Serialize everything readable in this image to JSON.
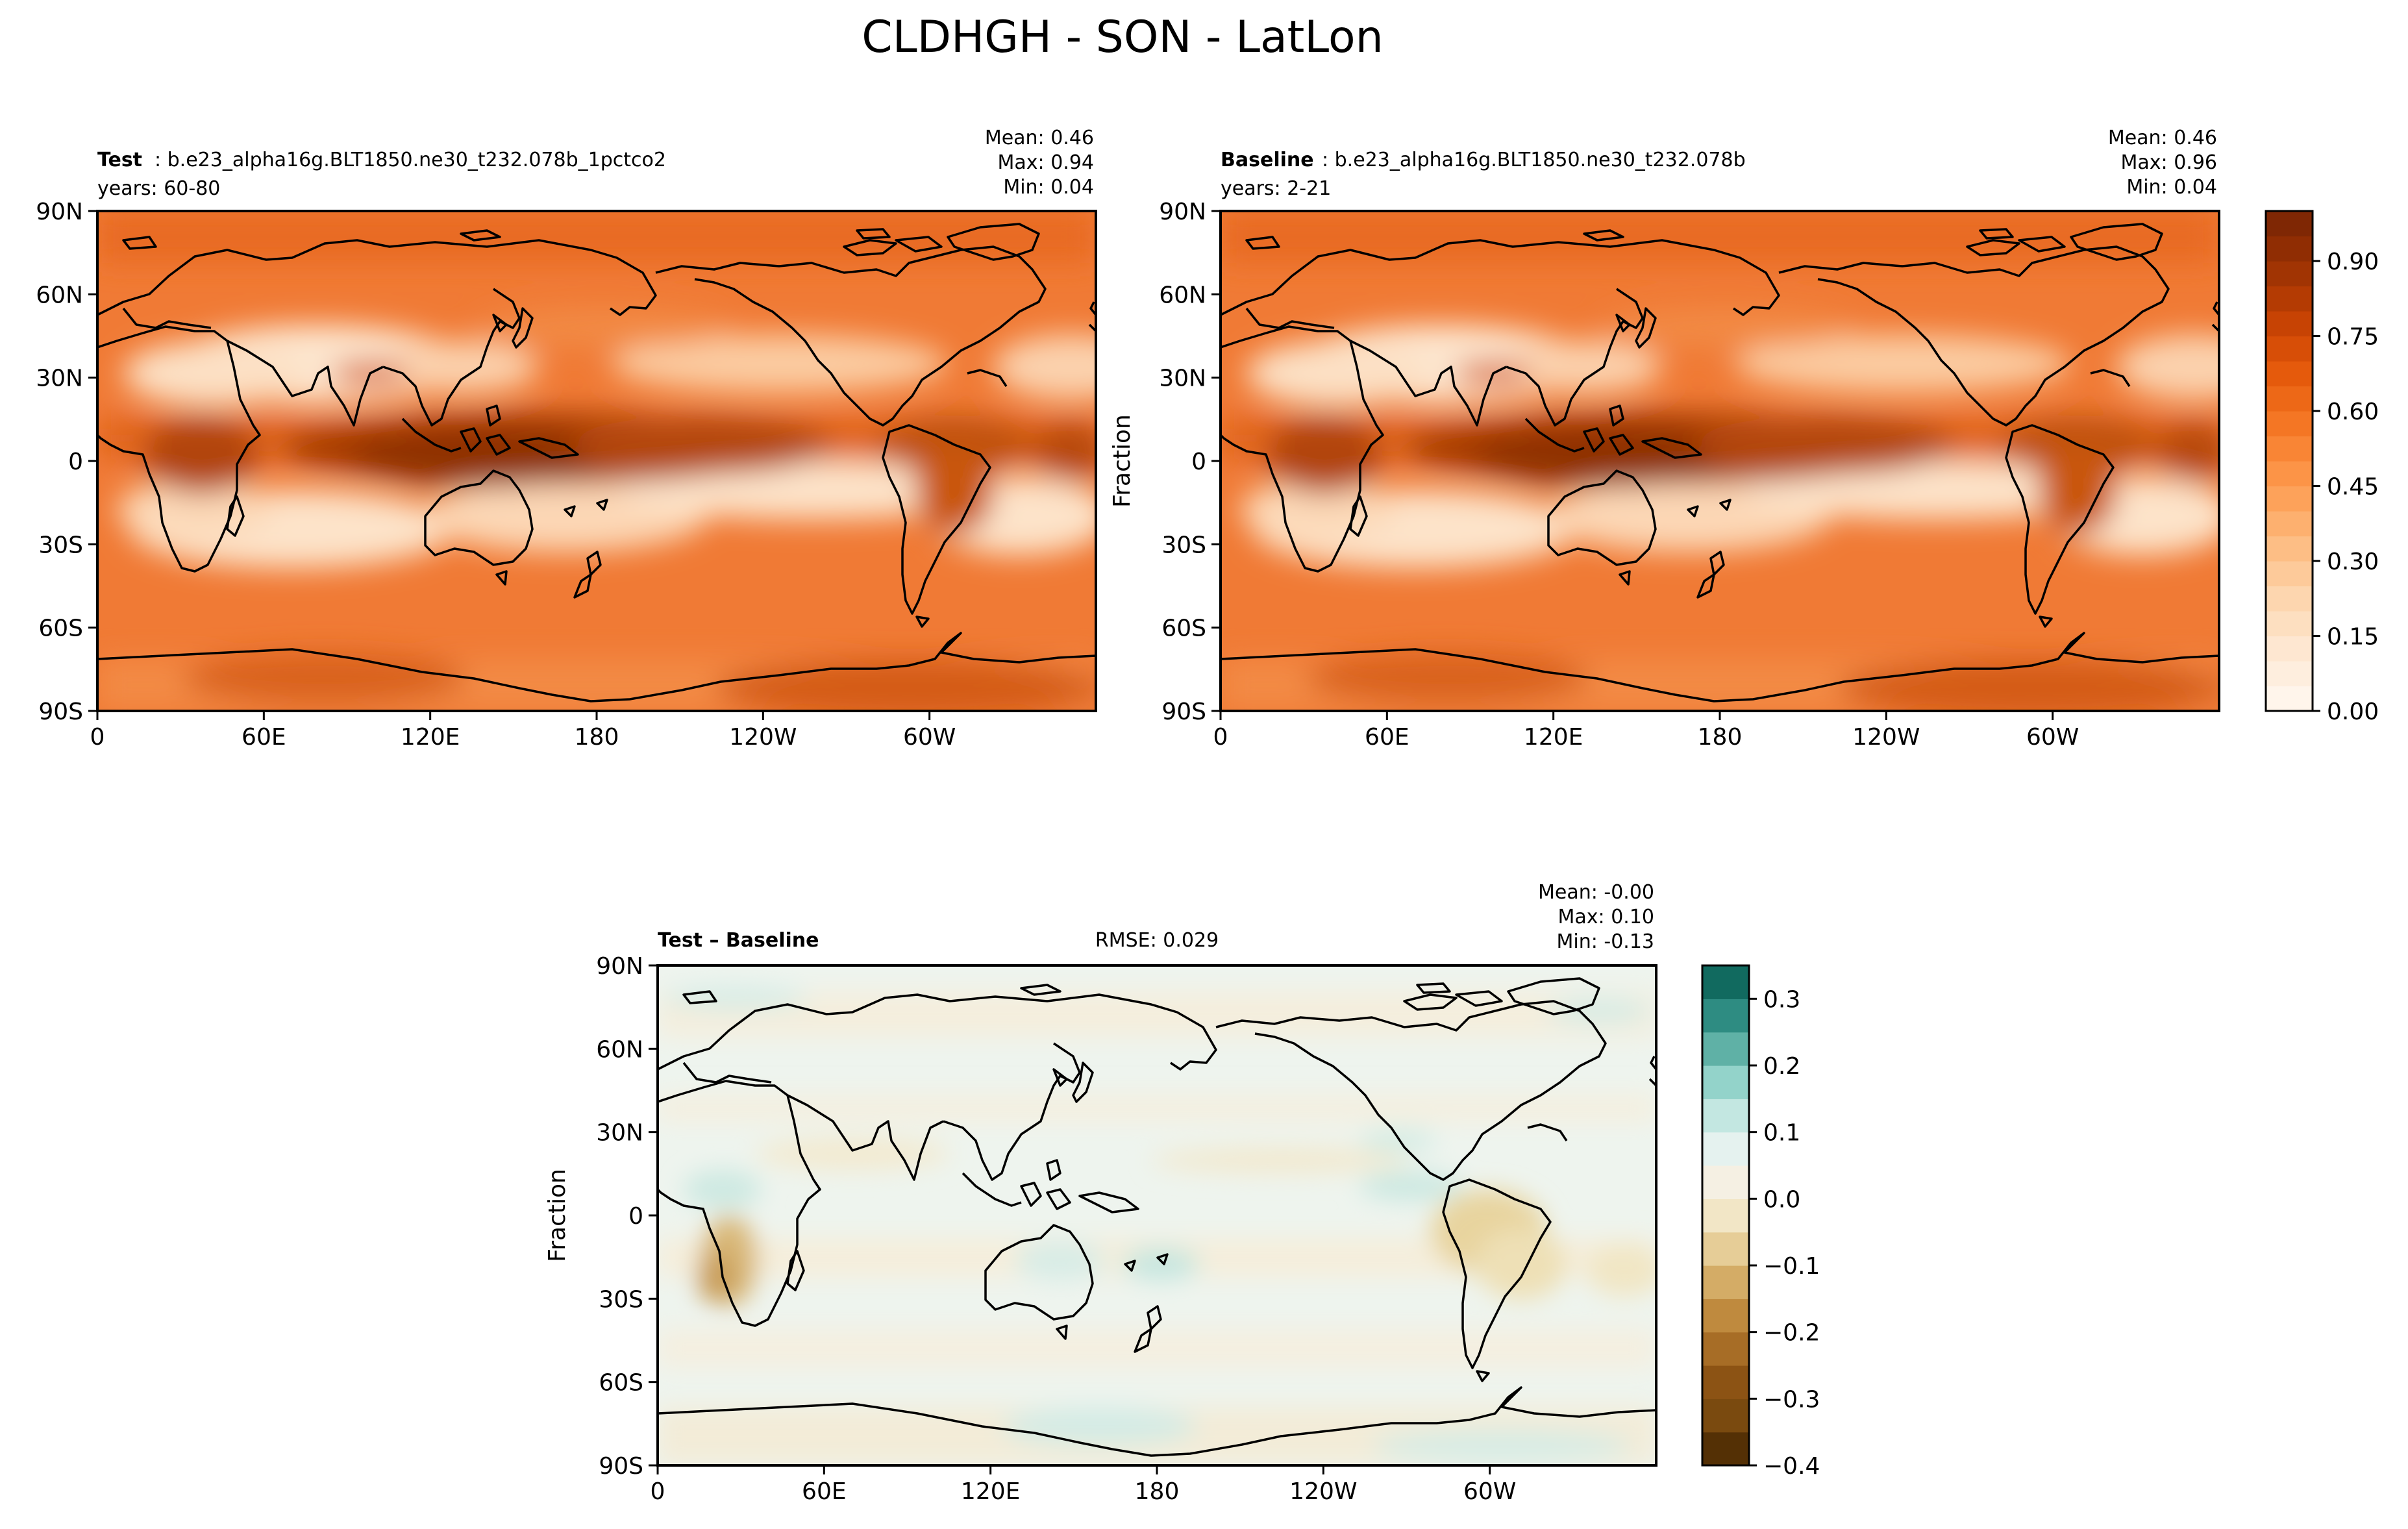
{
  "title": "CLDHGH - SON - LatLon",
  "chart_data": [
    {
      "type": "heatmap",
      "panel": "Test",
      "label_bold": "Test",
      "label_rest": ": b.e23_alpha16g.BLT1850.ne30_t232.078b_1pctco2",
      "years": "years: 60-80",
      "stats": {
        "mean": "Mean:  0.46",
        "max": "Max:  0.94",
        "min": "Min:  0.04"
      },
      "xticks": [
        "0",
        "60E",
        "120E",
        "180",
        "120W",
        "60W"
      ],
      "yticks": [
        "90N",
        "60N",
        "30N",
        "0",
        "30S",
        "60S",
        "90S"
      ],
      "ylabel": "",
      "xlim": [
        0,
        360
      ],
      "ylim": [
        -90,
        90
      ],
      "colormap": "Oranges",
      "summary": {
        "mean": 0.46,
        "max": 0.94,
        "min": 0.04
      }
    },
    {
      "type": "heatmap",
      "panel": "Baseline",
      "label_bold": "Baseline",
      "label_rest": ": b.e23_alpha16g.BLT1850.ne30_t232.078b",
      "years": "years: 2-21",
      "stats": {
        "mean": "Mean:  0.46",
        "max": "Max:  0.96",
        "min": "Min:  0.04"
      },
      "xticks": [
        "0",
        "60E",
        "120E",
        "180",
        "120W",
        "60W"
      ],
      "yticks": [
        "90N",
        "60N",
        "30N",
        "0",
        "30S",
        "60S",
        "90S"
      ],
      "ylabel": "Fraction",
      "xlim": [
        0,
        360
      ],
      "ylim": [
        -90,
        90
      ],
      "colormap": "Oranges",
      "colorbar": {
        "ticks": [
          "0.00",
          "0.15",
          "0.30",
          "0.45",
          "0.60",
          "0.75",
          "0.90"
        ],
        "range": [
          0,
          1.0
        ]
      },
      "summary": {
        "mean": 0.46,
        "max": 0.96,
        "min": 0.04
      }
    },
    {
      "type": "heatmap",
      "panel": "Test - Baseline",
      "label_bold": "Test – Baseline",
      "rmse": "RMSE: 0.029",
      "stats": {
        "mean": "Mean: -0.00",
        "max": "Max:  0.10",
        "min": "Min: -0.13"
      },
      "xticks": [
        "0",
        "60E",
        "120E",
        "180",
        "120W",
        "60W"
      ],
      "yticks": [
        "90N",
        "60N",
        "30N",
        "0",
        "30S",
        "60S",
        "90S"
      ],
      "ylabel": "Fraction",
      "xlim": [
        0,
        360
      ],
      "ylim": [
        -90,
        90
      ],
      "colormap": "BrBG",
      "colorbar": {
        "ticks": [
          "0.3",
          "0.2",
          "0.1",
          "0.0",
          "−0.1",
          "−0.2",
          "−0.3",
          "−0.4"
        ],
        "range": [
          -0.4,
          0.35
        ]
      },
      "summary": {
        "mean": -0.0,
        "max": 0.1,
        "min": -0.13
      }
    }
  ]
}
